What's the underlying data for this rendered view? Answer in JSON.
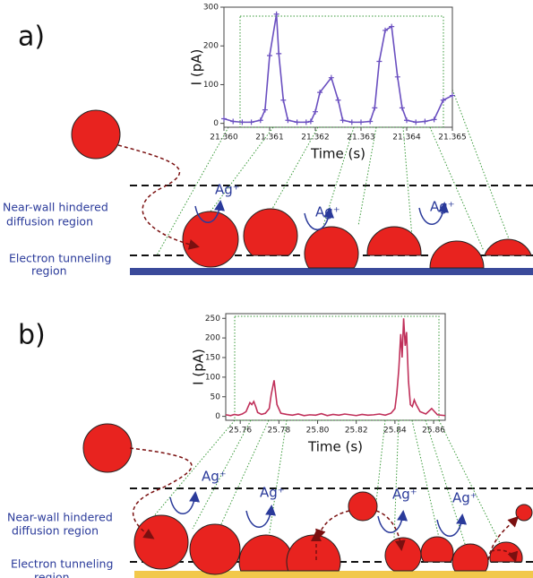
{
  "chart_data": [
    {
      "type": "line",
      "color": "#6a4fc0",
      "markers": true,
      "ylabel": "I (pA)",
      "xlabel": "Time (s)",
      "x": [
        21.36,
        21.3602,
        21.3604,
        21.3606,
        21.3608,
        21.3609,
        21.361,
        21.36115,
        21.3612,
        21.3613,
        21.3614,
        21.3616,
        21.3618,
        21.3619,
        21.362,
        21.3621,
        21.36235,
        21.3625,
        21.3626,
        21.3628,
        21.363,
        21.3632,
        21.3633,
        21.3634,
        21.36353,
        21.36367,
        21.3638,
        21.3639,
        21.364,
        21.3642,
        21.3644,
        21.3646,
        21.3648,
        21.365
      ],
      "values": [
        12,
        5,
        3,
        3,
        8,
        35,
        175,
        282,
        180,
        60,
        8,
        3,
        3,
        5,
        30,
        80,
        118,
        60,
        8,
        3,
        3,
        5,
        40,
        160,
        240,
        250,
        120,
        40,
        8,
        3,
        5,
        10,
        60,
        72
      ],
      "xlim": [
        21.36,
        21.365
      ],
      "ylim": [
        -10,
        300
      ],
      "xticks": [
        {
          "value": 21.36,
          "label": "21.360"
        },
        21.361,
        21.362,
        21.363,
        21.364,
        21.365
      ],
      "yticks": [
        0,
        100,
        200,
        300
      ]
    },
    {
      "type": "line",
      "color": "#c0305a",
      "markers": false,
      "ylabel": "I (pA)",
      "xlabel": "Time (s)",
      "x": [
        25.7525,
        25.755,
        25.757,
        25.759,
        25.761,
        25.763,
        25.765,
        25.766,
        25.767,
        25.768,
        25.769,
        25.771,
        25.773,
        25.775,
        25.776,
        25.7775,
        25.779,
        25.781,
        25.784,
        25.787,
        25.79,
        25.793,
        25.796,
        25.799,
        25.802,
        25.805,
        25.808,
        25.811,
        25.814,
        25.817,
        25.82,
        25.823,
        25.826,
        25.829,
        25.832,
        25.835,
        25.838,
        25.84,
        25.841,
        25.842,
        25.843,
        25.8437,
        25.8445,
        25.8453,
        25.846,
        25.847,
        25.848,
        25.849,
        25.85,
        25.851,
        25.853,
        25.856,
        25.859,
        25.862,
        25.866
      ],
      "values": [
        4,
        2,
        5,
        3,
        6,
        12,
        35,
        30,
        38,
        25,
        10,
        5,
        8,
        20,
        55,
        92,
        30,
        8,
        5,
        3,
        6,
        2,
        4,
        3,
        7,
        2,
        5,
        3,
        6,
        4,
        2,
        5,
        3,
        4,
        6,
        3,
        8,
        20,
        60,
        120,
        210,
        150,
        250,
        180,
        215,
        90,
        30,
        25,
        42,
        30,
        12,
        6,
        20,
        4,
        2
      ],
      "xlim": [
        25.7525,
        25.866
      ],
      "ylim": [
        -10,
        262
      ],
      "xticks": [
        25.76,
        25.78,
        {
          "value": 25.8,
          "label": "25.80"
        },
        25.82,
        25.84,
        25.86
      ],
      "yticks": [
        0,
        50,
        100,
        150,
        200,
        250
      ]
    }
  ],
  "diagram": {
    "panels": [
      "a)",
      "b)"
    ],
    "near_wall": [
      "Near-wall hindered",
      "diffusion region"
    ],
    "tunneling": [
      "Electron tunneling",
      "region"
    ],
    "ion": "Ag⁺"
  }
}
